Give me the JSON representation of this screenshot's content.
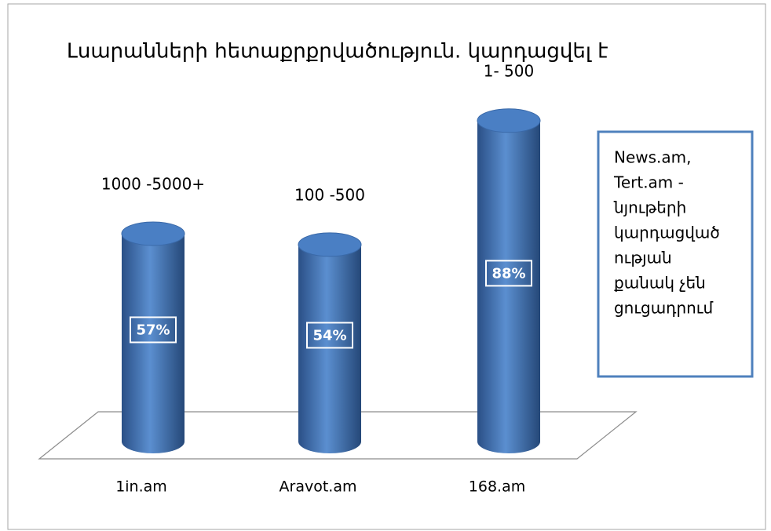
{
  "chart_data": {
    "type": "bar",
    "title": "Լսարանների հետաքրքրվածություն. կարդացվել է",
    "categories": [
      "1in.am",
      "Aravot.am",
      "168.am"
    ],
    "values": [
      57,
      54,
      88
    ],
    "value_labels": [
      "57%",
      "54%",
      "88%"
    ],
    "bar_annotations": [
      "1000 -5000+",
      "100 -500",
      "1- 500"
    ],
    "note": [
      "News.am,",
      "Tert.am -",
      "նյութերի",
      "կարդացված",
      "ության",
      "քանակ չեն",
      "ցուցադրում"
    ],
    "color": "#4f81bd"
  }
}
